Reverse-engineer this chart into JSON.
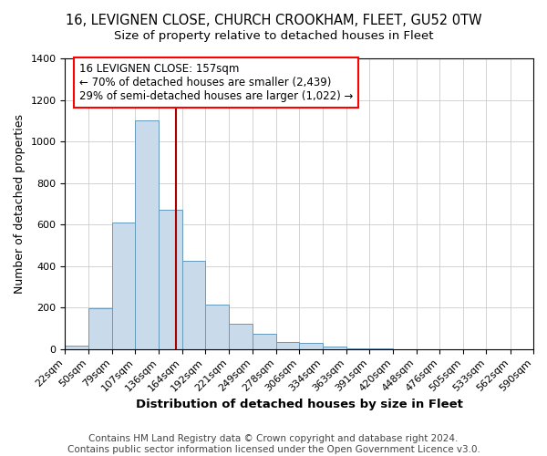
{
  "title": "16, LEVIGNEN CLOSE, CHURCH CROOKHAM, FLEET, GU52 0TW",
  "subtitle": "Size of property relative to detached houses in Fleet",
  "xlabel": "Distribution of detached houses by size in Fleet",
  "ylabel": "Number of detached properties",
  "bin_edges": [
    22,
    50,
    79,
    107,
    136,
    164,
    192,
    221,
    249,
    278,
    306,
    334,
    363,
    391,
    420,
    448,
    476,
    505,
    533,
    562,
    590
  ],
  "bar_heights": [
    15,
    195,
    610,
    1100,
    670,
    425,
    215,
    120,
    75,
    35,
    30,
    10,
    5,
    2,
    1,
    0,
    0,
    0,
    0,
    0
  ],
  "bar_color": "#c9daea",
  "bar_edge_color": "#6699bb",
  "vline_x": 157,
  "vline_color": "#aa0000",
  "annotation_line1": "16 LEVIGNEN CLOSE: 157sqm",
  "annotation_line2": "← 70% of detached houses are smaller (2,439)",
  "annotation_line3": "29% of semi-detached houses are larger (1,022) →",
  "ylim": [
    0,
    1400
  ],
  "yticks": [
    0,
    200,
    400,
    600,
    800,
    1000,
    1200,
    1400
  ],
  "footer_line1": "Contains HM Land Registry data © Crown copyright and database right 2024.",
  "footer_line2": "Contains public sector information licensed under the Open Government Licence v3.0.",
  "title_fontsize": 10.5,
  "subtitle_fontsize": 9.5,
  "xlabel_fontsize": 9.5,
  "ylabel_fontsize": 9,
  "tick_fontsize": 8,
  "annot_fontsize": 8.5,
  "footer_fontsize": 7.5
}
